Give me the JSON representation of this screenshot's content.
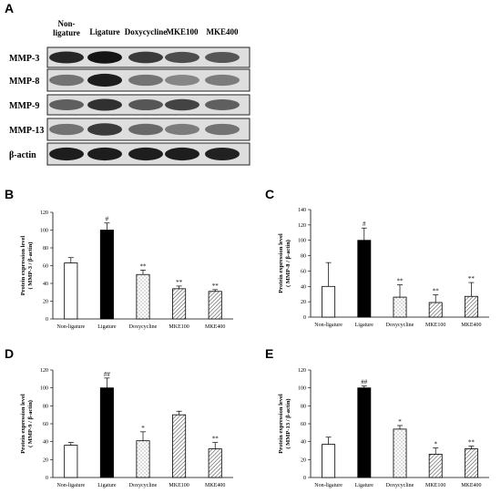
{
  "figure": {
    "panel_a": {
      "letter": "A",
      "lanes": [
        "Non-\nligature",
        "Ligature",
        "Doxycycline",
        "MKE100",
        "MKE400"
      ],
      "blots": [
        {
          "label": "MMP-3",
          "intensity": [
            0.85,
            0.95,
            0.75,
            0.65,
            0.6
          ]
        },
        {
          "label": "MMP-8",
          "intensity": [
            0.45,
            0.9,
            0.45,
            0.35,
            0.4
          ]
        },
        {
          "label": "MMP-9",
          "intensity": [
            0.55,
            0.8,
            0.6,
            0.7,
            0.55
          ]
        },
        {
          "label": "MMP-13",
          "intensity": [
            0.45,
            0.75,
            0.5,
            0.4,
            0.45
          ]
        },
        {
          "label": "β-actin",
          "intensity": [
            0.9,
            0.9,
            0.9,
            0.9,
            0.88
          ]
        }
      ]
    }
  },
  "chart_data": [
    {
      "type": "bar",
      "panel": "B",
      "ylabel": "Protein expression level\n( MMP-3 / β-actin)",
      "categories": [
        "Non-ligature",
        "Ligature",
        "Doxycycline",
        "MKE100",
        "MKE400"
      ],
      "values": [
        63,
        100,
        50,
        34,
        31
      ],
      "errors": [
        6,
        8,
        5,
        3,
        2
      ],
      "significance": [
        "",
        "#",
        "**",
        "**",
        "**"
      ],
      "ylim": [
        0,
        120
      ],
      "yticks": [
        0,
        20,
        40,
        60,
        80,
        100,
        120
      ]
    },
    {
      "type": "bar",
      "panel": "C",
      "ylabel": "Protein expression level\n( MMP-8 / β-actin)",
      "categories": [
        "Non-ligature",
        "Ligature",
        "Doxycycline",
        "MKE100",
        "MKE400"
      ],
      "values": [
        40,
        100,
        26,
        19,
        27
      ],
      "errors": [
        31,
        16,
        16,
        10,
        18
      ],
      "significance": [
        "",
        "#",
        "**",
        "**",
        "**"
      ],
      "ylim": [
        0,
        140
      ],
      "yticks": [
        0,
        20,
        40,
        60,
        80,
        100,
        120,
        140
      ]
    },
    {
      "type": "bar",
      "panel": "D",
      "ylabel": "Protein expression level\n( MMP-9 / β-actin)",
      "categories": [
        "Non-ligature",
        "Ligature",
        "Doxycycline",
        "MKE100",
        "MKE400"
      ],
      "values": [
        36,
        100,
        41,
        70,
        32
      ],
      "errors": [
        3,
        11,
        10,
        4,
        7
      ],
      "significance": [
        "",
        "##",
        "*",
        "",
        "**"
      ],
      "ylim": [
        0,
        120
      ],
      "yticks": [
        0,
        20,
        40,
        60,
        80,
        100,
        120
      ]
    },
    {
      "type": "bar",
      "panel": "E",
      "ylabel": "Protein expression level\n( MMP-13 / β-actin)",
      "categories": [
        "Non-ligature",
        "Ligature",
        "Doxycycline",
        "MKE100",
        "MKE400"
      ],
      "values": [
        37,
        100,
        54,
        26,
        32
      ],
      "errors": [
        8,
        2,
        4,
        7,
        3
      ],
      "significance": [
        "",
        "##",
        "*",
        "*",
        "**"
      ],
      "ylim": [
        0,
        120
      ],
      "yticks": [
        0,
        20,
        40,
        60,
        80,
        100,
        120
      ]
    }
  ],
  "bar_fills": [
    "white",
    "black",
    "dots",
    "hatch",
    "hatch"
  ]
}
